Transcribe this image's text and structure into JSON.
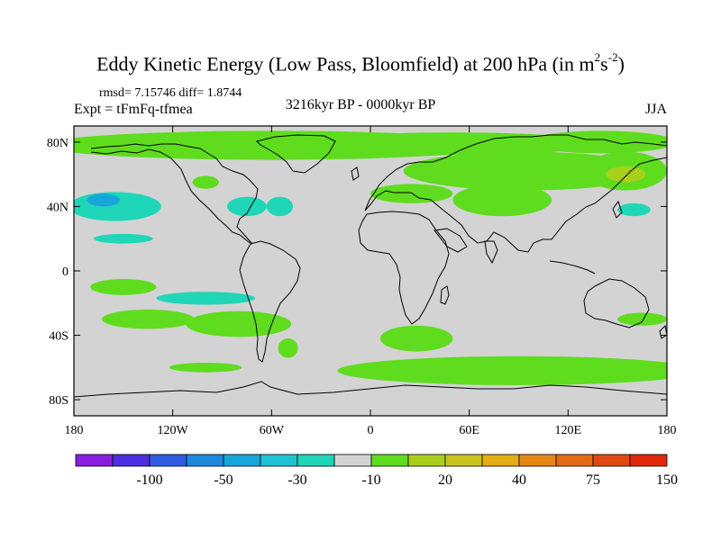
{
  "title": {
    "main": "Eddy Kinetic Energy (Low Pass, Bloomfield) at 200 hPa (in m",
    "sup1": "2",
    "mid": "s",
    "sup2": "-2",
    "end": ")"
  },
  "stats": {
    "rmsd": "rmsd= 7.15746 diff= 1.8744"
  },
  "experiment": "Expt = tFmFq-tfmea",
  "period": "3216kyr BP - 0000kyr BP",
  "season": "JJA",
  "map": {
    "lat_ticks": [
      "80N",
      "40N",
      "0",
      "40S",
      "80S"
    ],
    "lat_values": [
      80,
      40,
      0,
      -40,
      -80
    ],
    "lon_ticks": [
      "180",
      "120W",
      "60W",
      "0",
      "60E",
      "120E",
      "180"
    ],
    "lon_values": [
      -180,
      -120,
      -60,
      0,
      60,
      120,
      180
    ],
    "ocean_color": "#d3d3d3"
  },
  "colorbar": {
    "colors": [
      "#8a1ee0",
      "#4b2ee0",
      "#2f5be3",
      "#1e88dd",
      "#16a7d8",
      "#1fc3d0",
      "#1fd6b8",
      "#d3d3d3",
      "#5fdc1e",
      "#a8d01a",
      "#c8c31a",
      "#e0ae16",
      "#e48a14",
      "#e36a12",
      "#e04a10",
      "#e0280c"
    ],
    "labels": [
      "-100",
      "-50",
      "-30",
      "-10",
      "20",
      "40",
      "75",
      "150"
    ]
  },
  "fields": [
    {
      "lon": -60,
      "lat": 78,
      "rx": 140,
      "ry": 9,
      "color": "#5fdc1e"
    },
    {
      "lon": 50,
      "lat": 79,
      "rx": 90,
      "ry": 7,
      "color": "#5fdc1e"
    },
    {
      "lon": 140,
      "lat": 80,
      "rx": 45,
      "ry": 7,
      "color": "#5fdc1e"
    },
    {
      "lon": 95,
      "lat": 62,
      "rx": 75,
      "ry": 12,
      "color": "#5fdc1e"
    },
    {
      "lon": 155,
      "lat": 62,
      "rx": 25,
      "ry": 12,
      "color": "#5fdc1e"
    },
    {
      "lon": 155,
      "lat": 60,
      "rx": 12,
      "ry": 5,
      "color": "#a8d01a"
    },
    {
      "lon": -100,
      "lat": 55,
      "rx": 8,
      "ry": 4,
      "color": "#5fdc1e"
    },
    {
      "lon": 25,
      "lat": 48,
      "rx": 25,
      "ry": 6,
      "color": "#5fdc1e"
    },
    {
      "lon": 80,
      "lat": 44,
      "rx": 30,
      "ry": 10,
      "color": "#5fdc1e"
    },
    {
      "lon": -155,
      "lat": 40,
      "rx": 28,
      "ry": 9,
      "color": "#1fd6b8"
    },
    {
      "lon": -162,
      "lat": 44,
      "rx": 10,
      "ry": 4,
      "color": "#16a7d8"
    },
    {
      "lon": -150,
      "lat": 20,
      "rx": 18,
      "ry": 3,
      "color": "#1fd6b8"
    },
    {
      "lon": -75,
      "lat": 40,
      "rx": 12,
      "ry": 6,
      "color": "#1fd6b8"
    },
    {
      "lon": -55,
      "lat": 40,
      "rx": 8,
      "ry": 6,
      "color": "#1fd6b8"
    },
    {
      "lon": 160,
      "lat": 38,
      "rx": 10,
      "ry": 4,
      "color": "#1fd6b8"
    },
    {
      "lon": -150,
      "lat": -10,
      "rx": 20,
      "ry": 5,
      "color": "#5fdc1e"
    },
    {
      "lon": -100,
      "lat": -17,
      "rx": 30,
      "ry": 4,
      "color": "#1fd6b8"
    },
    {
      "lon": -135,
      "lat": -30,
      "rx": 28,
      "ry": 6,
      "color": "#5fdc1e"
    },
    {
      "lon": -80,
      "lat": -33,
      "rx": 32,
      "ry": 8,
      "color": "#5fdc1e"
    },
    {
      "lon": -50,
      "lat": -48,
      "rx": 6,
      "ry": 6,
      "color": "#5fdc1e"
    },
    {
      "lon": 28,
      "lat": -42,
      "rx": 22,
      "ry": 8,
      "color": "#5fdc1e"
    },
    {
      "lon": 90,
      "lat": -62,
      "rx": 110,
      "ry": 9,
      "color": "#5fdc1e"
    },
    {
      "lon": 165,
      "lat": -30,
      "rx": 15,
      "ry": 4,
      "color": "#5fdc1e"
    },
    {
      "lon": -100,
      "lat": -60,
      "rx": 22,
      "ry": 3,
      "color": "#5fdc1e"
    }
  ]
}
